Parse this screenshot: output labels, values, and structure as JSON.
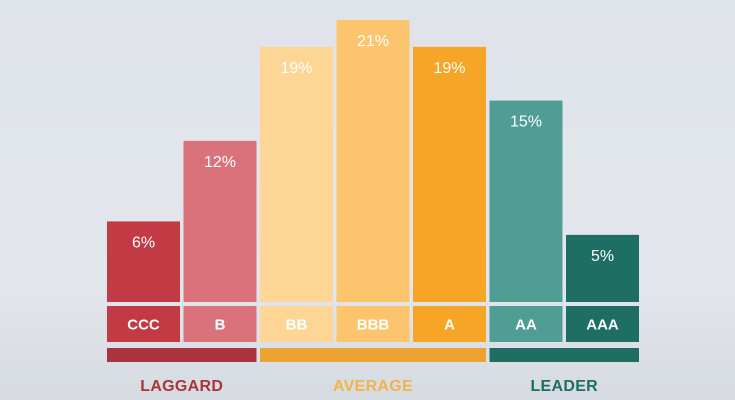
{
  "chart_data": {
    "type": "bar",
    "categories": [
      "CCC",
      "B",
      "BB",
      "BBB",
      "A",
      "AA",
      "AAA"
    ],
    "values": [
      6,
      12,
      19,
      21,
      19,
      15,
      5
    ],
    "value_labels": [
      "6%",
      "12%",
      "19%",
      "21%",
      "19%",
      "15%",
      "5%"
    ],
    "bar_colors": [
      "#c23a44",
      "#d9727a",
      "#fdd595",
      "#fcc46c",
      "#f7a527",
      "#4f9d95",
      "#1e6e63"
    ],
    "groups": [
      {
        "name": "LAGGARD",
        "categories": [
          "CCC",
          "B"
        ],
        "color": "#a9343d",
        "text_color": "#a9343d"
      },
      {
        "name": "AVERAGE",
        "categories": [
          "BB",
          "BBB",
          "A"
        ],
        "color": "#eca331",
        "text_color": "#f3b34a"
      },
      {
        "name": "LEADER",
        "categories": [
          "AA",
          "AAA"
        ],
        "color": "#1e6e63",
        "text_color": "#1e6e63"
      }
    ],
    "title": "",
    "xlabel": "",
    "ylabel": "",
    "ylim": [
      0,
      21
    ],
    "grid": false,
    "legend": "none"
  }
}
